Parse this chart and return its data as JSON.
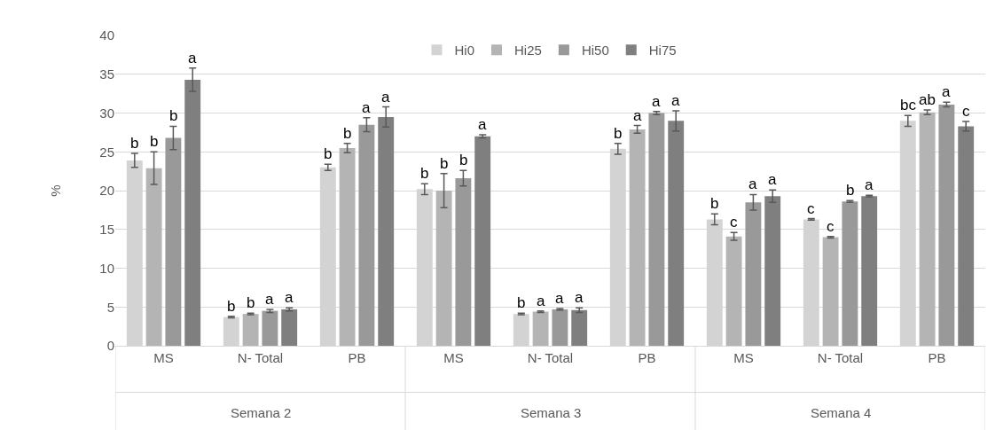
{
  "chart_data": {
    "type": "bar",
    "ylabel": "%",
    "categories": [
      "MS",
      "N- Total",
      "PB",
      "MS",
      "N- Total",
      "PB",
      "MS",
      "N- Total",
      "PB"
    ],
    "annotations": [
      "Semana 2",
      "Semana 3",
      "Semana 4"
    ],
    "series": [
      {
        "name": "Hi0",
        "color": "#d3d3d3",
        "values": [
          23.9,
          3.7,
          23.0,
          20.2,
          4.1,
          25.4,
          16.3,
          16.3,
          29.0
        ],
        "errors": [
          0.9,
          0.1,
          0.4,
          0.7,
          0.1,
          0.7,
          0.7,
          0.1,
          0.7
        ],
        "value_labels": [
          "b",
          "b",
          "b",
          "b",
          "b",
          "b",
          "b",
          "c",
          "bc"
        ]
      },
      {
        "name": "Hi25",
        "color": "#b4b4b4",
        "values": [
          22.9,
          4.1,
          25.5,
          20.0,
          4.4,
          27.9,
          14.1,
          14.0,
          30.1
        ],
        "errors": [
          2.1,
          0.1,
          0.6,
          2.2,
          0.1,
          0.5,
          0.5,
          0.1,
          0.3
        ],
        "value_labels": [
          "b",
          "b",
          "b",
          "b",
          "a",
          "a",
          "c",
          "c",
          "ab"
        ]
      },
      {
        "name": "Hi50",
        "color": "#999999",
        "values": [
          26.8,
          4.5,
          28.5,
          21.6,
          4.7,
          30.0,
          18.5,
          18.6,
          31.1
        ],
        "errors": [
          1.5,
          0.2,
          0.9,
          1.0,
          0.1,
          0.2,
          1.0,
          0.1,
          0.3
        ],
        "value_labels": [
          "b",
          "a",
          "a",
          "b",
          "a",
          "a",
          "a",
          "b",
          "a"
        ]
      },
      {
        "name": "Hi75",
        "color": "#7f7f7f",
        "values": [
          34.3,
          4.7,
          29.5,
          27.0,
          4.6,
          29.0,
          19.3,
          19.3,
          28.3
        ],
        "errors": [
          1.5,
          0.2,
          1.3,
          0.2,
          0.3,
          1.3,
          0.8,
          0.1,
          0.6
        ],
        "value_labels": [
          "a",
          "a",
          "a",
          "a",
          "a",
          "a",
          "a",
          "a",
          "c"
        ]
      }
    ],
    "ylim": [
      0,
      40
    ],
    "yticks": [
      0,
      5,
      10,
      15,
      20,
      25,
      30,
      35,
      40
    ],
    "grid": "y",
    "legend": "top"
  }
}
